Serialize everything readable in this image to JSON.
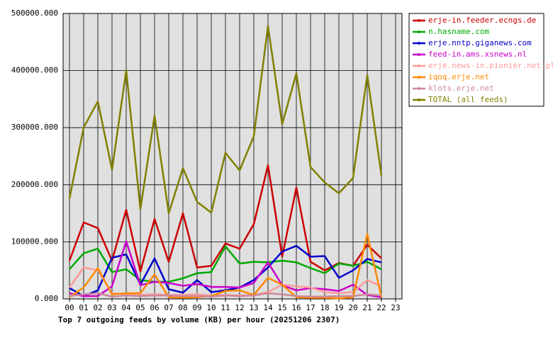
{
  "chart_data": {
    "type": "line",
    "title": "Top 7 outgoing feeds by volume (KB) per hour (20251206 2307)",
    "categories": [
      "00",
      "01",
      "02",
      "03",
      "04",
      "05",
      "06",
      "07",
      "08",
      "09",
      "10",
      "11",
      "12",
      "13",
      "14",
      "15",
      "16",
      "17",
      "18",
      "19",
      "20",
      "21",
      "22",
      "23"
    ],
    "ylim": [
      0,
      500000
    ],
    "yticks": [
      {
        "value": 0,
        "label": "0.000"
      },
      {
        "value": 100000,
        "label": "100000.000"
      },
      {
        "value": 200000,
        "label": "200000.000"
      },
      {
        "value": 300000,
        "label": "300000.000"
      },
      {
        "value": 400000,
        "label": "400000.000"
      },
      {
        "value": 500000,
        "label": "500000.000"
      }
    ],
    "grid": true,
    "legend": "right",
    "series": [
      {
        "name": "erje-in.feeder.ecngs.de",
        "color": "#cc0000",
        "values": [
          67000,
          134000,
          124000,
          67000,
          156000,
          48000,
          140000,
          65000,
          150000,
          55000,
          58000,
          97000,
          88000,
          131000,
          234000,
          74000,
          195000,
          65000,
          50000,
          63000,
          58000,
          95000,
          71000,
          null
        ]
      },
      {
        "name": "n.hasname.com",
        "color": "#00aa00",
        "values": [
          52000,
          80000,
          88000,
          47000,
          52000,
          33000,
          30000,
          30000,
          36000,
          45000,
          47000,
          92000,
          62000,
          65000,
          64000,
          67000,
          64000,
          54000,
          45000,
          62000,
          58000,
          65000,
          52000,
          null
        ]
      },
      {
        "name": "erje.nntp.giganews.com",
        "color": "#0000cc",
        "values": [
          19000,
          5000,
          15000,
          72000,
          78000,
          25000,
          71000,
          17000,
          11000,
          33000,
          12000,
          15000,
          20000,
          33000,
          55000,
          83000,
          93000,
          74000,
          75000,
          37000,
          50000,
          70000,
          64000,
          null
        ]
      },
      {
        "name": "feed-in.ams.xsnews.nl",
        "color": "#cc00cc",
        "values": [
          10000,
          5000,
          5000,
          22000,
          101000,
          24000,
          30000,
          28000,
          23000,
          26000,
          21000,
          21000,
          20000,
          28000,
          64000,
          24000,
          15000,
          19000,
          17000,
          14000,
          25000,
          7000,
          3000,
          null
        ]
      },
      {
        "name": "erje.news-in.pionier.net.pl",
        "color": "#ff9999",
        "values": [
          20000,
          55000,
          50000,
          10000,
          8000,
          7000,
          8000,
          7000,
          7000,
          8000,
          6000,
          7000,
          6000,
          7000,
          12000,
          25000,
          22000,
          20000,
          12000,
          10000,
          12000,
          33000,
          22000,
          null
        ]
      },
      {
        "name": "iqoq.erje.net",
        "color": "#ff8800",
        "values": [
          3000,
          20000,
          54000,
          8000,
          10000,
          10000,
          43000,
          3000,
          2000,
          3000,
          5000,
          14000,
          15000,
          7000,
          37000,
          25000,
          3000,
          2000,
          2000,
          1000,
          3000,
          114000,
          3000,
          null
        ]
      },
      {
        "name": "klots.erje.net",
        "color": "#cc8899",
        "values": [
          5000,
          8000,
          10000,
          4000,
          6000,
          5000,
          6000,
          6000,
          5000,
          5000,
          4000,
          6000,
          5000,
          6000,
          10000,
          8000,
          5000,
          4000,
          4000,
          5000,
          5000,
          8000,
          6000,
          null
        ]
      },
      {
        "name": "TOTAL (all feeds)",
        "color": "#808000",
        "values": [
          176000,
          300000,
          346000,
          226000,
          400000,
          157000,
          321000,
          150000,
          229000,
          170000,
          151000,
          256000,
          225000,
          285000,
          478000,
          306000,
          395000,
          231000,
          204000,
          185000,
          212000,
          392000,
          216000,
          null
        ]
      }
    ]
  }
}
